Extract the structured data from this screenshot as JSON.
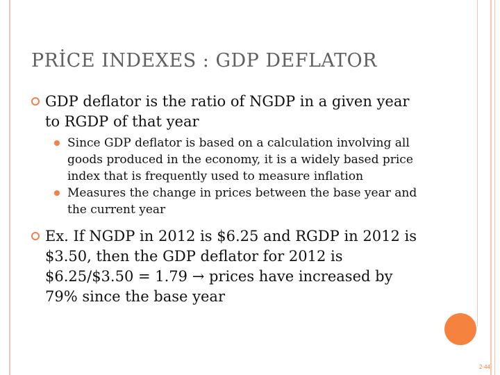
{
  "slide": {
    "title": "PRİCE  INDEXES : GDP  DEFLATOR",
    "bullets": [
      {
        "text": "GDP deflator is the ratio of NGDP in a given year to RGDP of that year",
        "sub": [
          "Since GDP deflator is based on a calculation involving all goods produced in the economy, it is a widely based price index that is frequently used to measure inflation",
          "Measures the change in prices between the base year and the current year"
        ]
      },
      {
        "text": "Ex. If NGDP in 2012 is $6.25 and RGDP in 2012 is $3.50, then the GDP deflator for 2012 is $6.25/$3.50 = 1.79  → prices have increased by 79% since the base year"
      }
    ],
    "slide_number": "2-44"
  },
  "colors": {
    "accent": "#f47f49",
    "frame": "#f5c6b4",
    "title": "#606060"
  }
}
